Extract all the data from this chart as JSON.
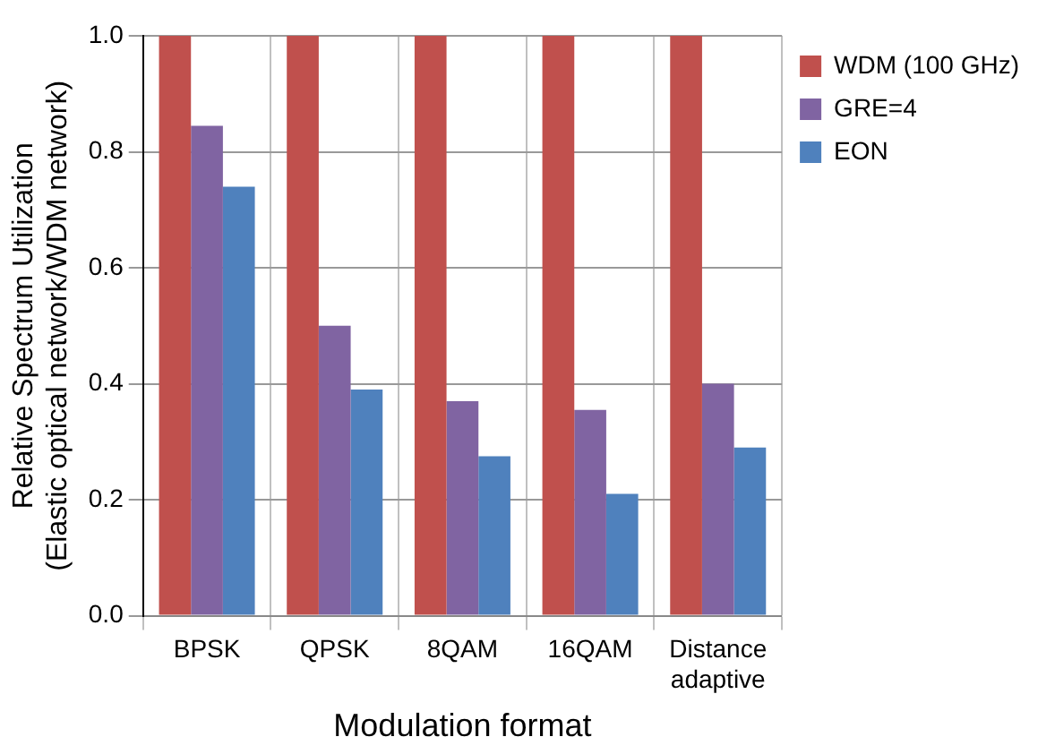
{
  "chart_data": {
    "type": "bar",
    "xlabel": "Modulation format",
    "ylabel": "Relative Spectrum Utilization\n(Elastic optical network/WDM network)",
    "categories": [
      "BPSK",
      "QPSK",
      "8QAM",
      "16QAM",
      "Distance\nadaptive"
    ],
    "series": [
      {
        "name": "WDM (100 GHz)",
        "color": "#c0504d",
        "values": [
          1.0,
          1.0,
          1.0,
          1.0,
          1.0
        ]
      },
      {
        "name": "GRE=4",
        "color": "#8064a2",
        "values": [
          0.845,
          0.5,
          0.37,
          0.355,
          0.4
        ]
      },
      {
        "name": "EON",
        "color": "#4f81bd",
        "values": [
          0.74,
          0.39,
          0.275,
          0.21,
          0.29
        ]
      }
    ],
    "ylim": [
      0,
      1
    ],
    "yticks": [
      {
        "value": 0,
        "label": "0.0"
      },
      {
        "value": 0.2,
        "label": "0.2"
      },
      {
        "value": 0.4,
        "label": "0.4"
      },
      {
        "value": 0.6,
        "label": "0.6"
      },
      {
        "value": 0.8,
        "label": "0.8"
      },
      {
        "value": 1,
        "label": "1.0"
      }
    ],
    "grid": true,
    "legend": "right"
  }
}
